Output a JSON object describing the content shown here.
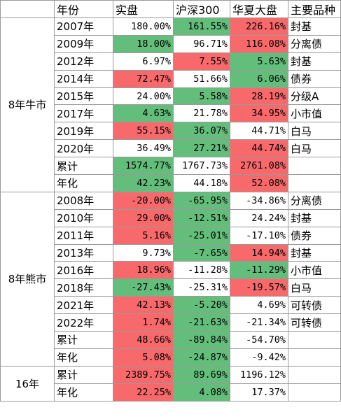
{
  "headers": [
    "",
    "年份",
    "实盘",
    "沪深300",
    "华夏大盘",
    "主要品种"
  ],
  "colors": {
    "green": "#63be7b",
    "red": "#f8696b",
    "white": "#ffffff"
  },
  "groups": [
    {
      "label": "8年牛市",
      "rows": [
        {
          "year": "2007年",
          "a": "180.00%",
          "ac": "w",
          "b": "161.55%",
          "bc": "g",
          "c": "226.16%",
          "cc": "r",
          "type": "封基"
        },
        {
          "year": "2009年",
          "a": "18.00%",
          "ac": "g",
          "b": "96.71%",
          "bc": "w",
          "c": "116.08%",
          "cc": "r",
          "type": "分离债"
        },
        {
          "year": "2012年",
          "a": "6.97%",
          "ac": "w",
          "b": "7.55%",
          "bc": "r",
          "c": "5.63%",
          "cc": "g",
          "type": "封基"
        },
        {
          "year": "2014年",
          "a": "72.47%",
          "ac": "r",
          "b": "51.66%",
          "bc": "w",
          "c": "6.06%",
          "cc": "g",
          "type": "债券"
        },
        {
          "year": "2015年",
          "a": "24.00%",
          "ac": "w",
          "b": "5.58%",
          "bc": "g",
          "c": "28.19%",
          "cc": "r",
          "type": "分级A"
        },
        {
          "year": "2017年",
          "a": "4.63%",
          "ac": "g",
          "b": "21.78%",
          "bc": "w",
          "c": "34.95%",
          "cc": "r",
          "type": "小市值"
        },
        {
          "year": "2019年",
          "a": "55.15%",
          "ac": "r",
          "b": "36.07%",
          "bc": "g",
          "c": "44.71%",
          "cc": "w",
          "type": "白马"
        },
        {
          "year": "2020年",
          "a": "36.49%",
          "ac": "w",
          "b": "27.21%",
          "bc": "g",
          "c": "44.74%",
          "cc": "r",
          "type": "白马"
        },
        {
          "year": "累计",
          "a": "1574.77%",
          "ac": "g",
          "b": "1767.73%",
          "bc": "w",
          "c": "2761.08%",
          "cc": "r",
          "type": ""
        },
        {
          "year": "年化",
          "a": "42.23%",
          "ac": "g",
          "b": "44.18%",
          "bc": "w",
          "c": "52.08%",
          "cc": "r",
          "type": ""
        }
      ]
    },
    {
      "label": "8年熊市",
      "rows": [
        {
          "year": "2008年",
          "a": "-20.00%",
          "ac": "r",
          "b": "-65.95%",
          "bc": "g",
          "c": "-34.86%",
          "cc": "w",
          "type": "分离债"
        },
        {
          "year": "2010年",
          "a": "29.00%",
          "ac": "r",
          "b": "-12.51%",
          "bc": "g",
          "c": "24.24%",
          "cc": "w",
          "type": "封基"
        },
        {
          "year": "2011年",
          "a": "5.16%",
          "ac": "r",
          "b": "-25.01%",
          "bc": "g",
          "c": "-17.10%",
          "cc": "w",
          "type": "债券"
        },
        {
          "year": "2013年",
          "a": "9.73%",
          "ac": "w",
          "b": "-7.65%",
          "bc": "g",
          "c": "14.94%",
          "cc": "r",
          "type": "封基"
        },
        {
          "year": "2016年",
          "a": "18.96%",
          "ac": "r",
          "b": "-11.28%",
          "bc": "w",
          "c": "-11.29%",
          "cc": "g",
          "type": "小市值"
        },
        {
          "year": "2018年",
          "a": "-27.43%",
          "ac": "g",
          "b": "-25.31%",
          "bc": "w",
          "c": "-19.57%",
          "cc": "r",
          "type": "白马"
        },
        {
          "year": "2021年",
          "a": "42.13%",
          "ac": "r",
          "b": "-5.20%",
          "bc": "g",
          "c": "4.69%",
          "cc": "w",
          "type": "可转债"
        },
        {
          "year": "2022年",
          "a": "1.74%",
          "ac": "r",
          "b": "-21.63%",
          "bc": "g",
          "c": "-21.34%",
          "cc": "w",
          "type": "可转债"
        },
        {
          "year": "累计",
          "a": "48.66%",
          "ac": "r",
          "b": "-89.84%",
          "bc": "g",
          "c": "-54.70%",
          "cc": "w",
          "type": ""
        },
        {
          "year": "年化",
          "a": "5.08%",
          "ac": "r",
          "b": "-24.87%",
          "bc": "g",
          "c": "-9.42%",
          "cc": "w",
          "type": ""
        }
      ]
    },
    {
      "label": "16年",
      "rows": [
        {
          "year": "累计",
          "a": "2389.75%",
          "ac": "r",
          "b": "89.69%",
          "bc": "g",
          "c": "1196.12%",
          "cc": "w",
          "type": ""
        },
        {
          "year": "年化",
          "a": "22.25%",
          "ac": "r",
          "b": "4.08%",
          "bc": "g",
          "c": "17.37%",
          "cc": "w",
          "type": ""
        }
      ]
    }
  ]
}
